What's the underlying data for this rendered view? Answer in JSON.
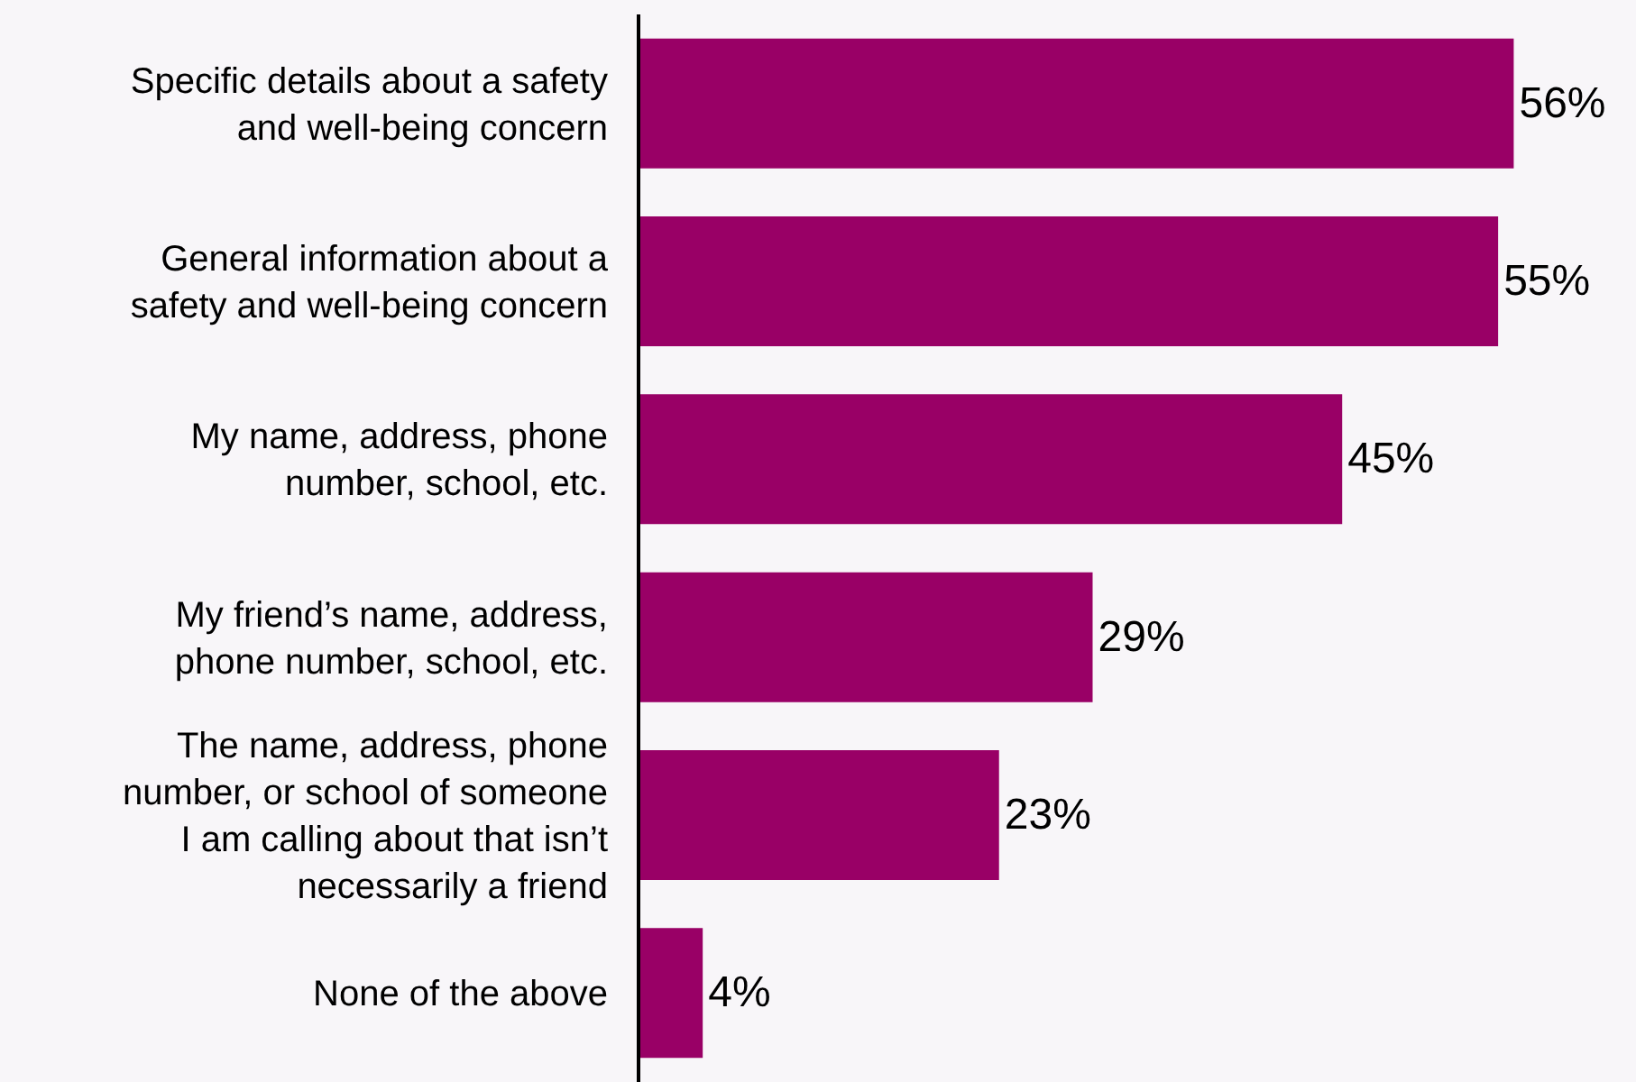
{
  "chart_data": {
    "type": "bar",
    "orientation": "horizontal",
    "categories": [
      "Specific details about a safety\nand well-being concern",
      "General information about a\nsafety and well-being concern",
      "My name, address, phone\nnumber, school, etc.",
      "My friend’s name, address,\nphone number, school, etc.",
      "The name, address, phone\nnumber, or school of someone\nI am calling about that isn’t\nnecessarily a friend",
      "None of the above"
    ],
    "values": [
      56,
      55,
      45,
      29,
      23,
      4
    ],
    "value_labels": [
      "56%",
      "55%",
      "45%",
      "29%",
      "23%",
      "4%"
    ],
    "color": "#990066"
  }
}
